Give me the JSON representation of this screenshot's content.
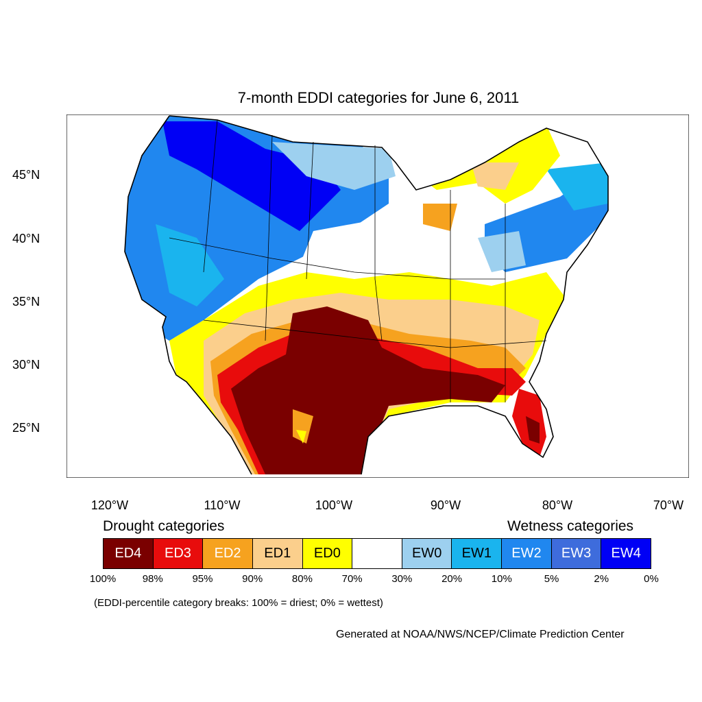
{
  "map": {
    "title": "7-month EDDI categories for June 6, 2011",
    "lat_labels": [
      "45°N",
      "40°N",
      "35°N",
      "30°N",
      "25°N"
    ],
    "lon_labels": [
      "120°W",
      "110°W",
      "100°W",
      "90°W",
      "80°W",
      "70°W"
    ]
  },
  "legend": {
    "drought_heading": "Drought categories",
    "wetness_heading": "Wetness categories",
    "categories": [
      {
        "label": "ED4",
        "color": "#7a0000",
        "text_color": "#ffffff"
      },
      {
        "label": "ED3",
        "color": "#e80c0c",
        "text_color": "#ffffff"
      },
      {
        "label": "ED2",
        "color": "#f6a21f",
        "text_color": "#ffffff"
      },
      {
        "label": "ED1",
        "color": "#fbcf8c",
        "text_color": "#000000"
      },
      {
        "label": "ED0",
        "color": "#ffff00",
        "text_color": "#000000"
      },
      {
        "label": "",
        "color": "#ffffff",
        "text_color": "#000000"
      },
      {
        "label": "EW0",
        "color": "#9dd0ef",
        "text_color": "#000000"
      },
      {
        "label": "EW1",
        "color": "#1ab4ee",
        "text_color": "#000000"
      },
      {
        "label": "EW2",
        "color": "#2087ef",
        "text_color": "#ffffff"
      },
      {
        "label": "EW3",
        "color": "#3e6cdc",
        "text_color": "#ffffff"
      },
      {
        "label": "EW4",
        "color": "#0000f5",
        "text_color": "#ffffff"
      }
    ],
    "breaks": [
      "100%",
      "98%",
      "95%",
      "90%",
      "80%",
      "70%",
      "30%",
      "20%",
      "10%",
      "5%",
      "2%",
      "0%"
    ],
    "footnote": "(EDDI-percentile category breaks: 100% = driest; 0% = wettest)"
  },
  "credit": "Generated at NOAA/NWS/NCEP/Climate Prediction Center"
}
